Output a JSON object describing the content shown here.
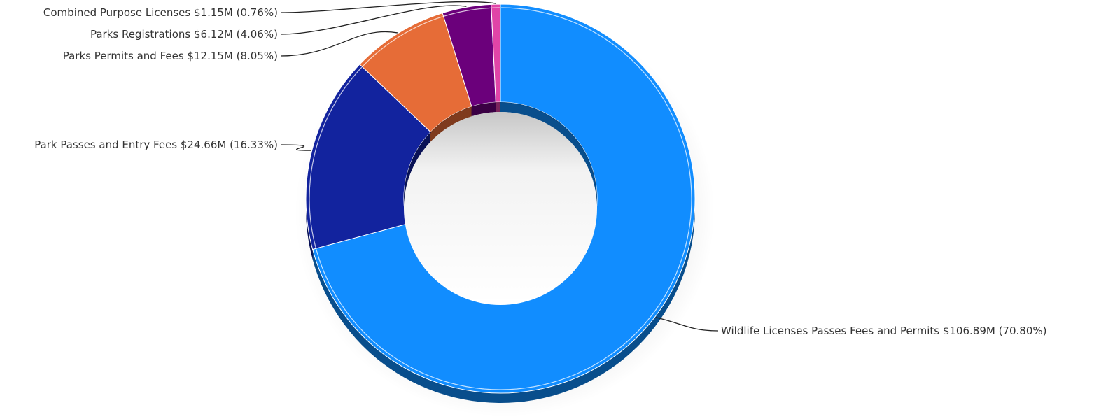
{
  "chart_data": {
    "type": "pie",
    "variant": "donut-3d",
    "title": "",
    "slices": [
      {
        "name": "Wildlife Licenses Passes Fees and Permits",
        "value_display": "$106.89M",
        "percent_display": "(70.80%)",
        "value": 106.89,
        "percent": 70.8,
        "color": "#118dff"
      },
      {
        "name": "Park Passes and Entry Fees",
        "value_display": "$24.66M",
        "percent_display": "(16.33%)",
        "value": 24.66,
        "percent": 16.33,
        "color": "#12239e"
      },
      {
        "name": "Parks Permits and Fees",
        "value_display": "$12.15M",
        "percent_display": "(8.05%)",
        "value": 12.15,
        "percent": 8.05,
        "color": "#e66c37"
      },
      {
        "name": "Parks Registrations",
        "value_display": "$6.12M",
        "percent_display": "(4.06%)",
        "value": 6.12,
        "percent": 4.06,
        "color": "#6b007b"
      },
      {
        "name": "Combined Purpose Licenses",
        "value_display": "$1.15M",
        "percent_display": "(0.76%)",
        "value": 1.15,
        "percent": 0.76,
        "color": "#e044a7"
      }
    ],
    "legend": "none",
    "data_labels": "outside with leader lines"
  }
}
